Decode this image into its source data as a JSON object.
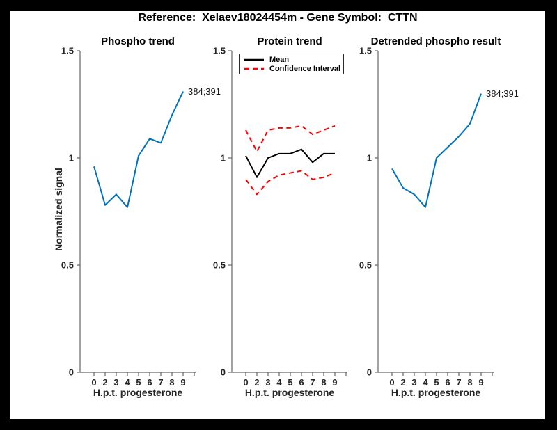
{
  "figure": {
    "title": "Reference:  Xelaev18024454m - Gene Symbol:  CTTN",
    "background": "#000000",
    "canvas": "#ffffff"
  },
  "colors": {
    "blue": "#0072BD",
    "red": "#FF0000",
    "black": "#000000",
    "axis_line": "#666666",
    "tick_text": "#262626"
  },
  "axes_shared": {
    "xlabel": "H.p.t. progesterone",
    "ylabel": "Normalized signal",
    "x_tick_labels": [
      "0",
      "2",
      "3",
      "4",
      "5",
      "6",
      "7",
      "8",
      "9"
    ],
    "y_tick_labels": [
      "0",
      "0.5",
      "1",
      "1.5"
    ],
    "ylim": [
      0,
      1.5
    ],
    "grid": false
  },
  "chart_data": [
    {
      "type": "line",
      "title": "Phospho trend",
      "xlabel": "H.p.t. progesterone",
      "ylabel": "Normalized signal",
      "x": [
        0,
        2,
        3,
        4,
        5,
        6,
        7,
        8,
        9
      ],
      "ylim": [
        0,
        1.5
      ],
      "yticks": [
        0,
        0.5,
        1,
        1.5
      ],
      "series": [
        {
          "name": "phospho site 384;391",
          "color": "#0072BD",
          "style": "solid",
          "values": [
            0.96,
            0.78,
            0.83,
            0.77,
            1.01,
            1.09,
            1.07,
            1.2,
            1.31
          ]
        }
      ],
      "end_label": "384;391"
    },
    {
      "type": "line",
      "title": "Protein trend",
      "xlabel": "H.p.t. progesterone",
      "ylabel": "",
      "x": [
        0,
        2,
        3,
        4,
        5,
        6,
        7,
        8,
        9
      ],
      "ylim": [
        0,
        1.5
      ],
      "yticks": [
        0,
        0.5,
        1,
        1.5
      ],
      "series": [
        {
          "name": "Mean",
          "color": "#000000",
          "style": "solid",
          "values": [
            1.01,
            0.91,
            1.0,
            1.02,
            1.02,
            1.04,
            0.98,
            1.02,
            1.02
          ]
        },
        {
          "name": "Confidence Interval upper",
          "color": "#FF0000",
          "style": "dashed",
          "values": [
            1.13,
            1.03,
            1.13,
            1.14,
            1.14,
            1.15,
            1.11,
            1.13,
            1.15
          ]
        },
        {
          "name": "Confidence Interval lower",
          "color": "#FF0000",
          "style": "dashed",
          "values": [
            0.9,
            0.83,
            0.89,
            0.92,
            0.93,
            0.94,
            0.9,
            0.91,
            0.93
          ]
        }
      ],
      "legend": {
        "position": "northwest",
        "items": [
          {
            "label": "Mean",
            "color": "#000000",
            "style": "solid"
          },
          {
            "label": "Confidence Interval",
            "color": "#FF0000",
            "style": "dashed"
          }
        ]
      }
    },
    {
      "type": "line",
      "title": "Detrended phospho result",
      "xlabel": "H.p.t. progesterone",
      "ylabel": "",
      "x": [
        0,
        2,
        3,
        4,
        5,
        6,
        7,
        8,
        9
      ],
      "ylim": [
        0,
        1.5
      ],
      "yticks": [
        0,
        0.5,
        1,
        1.5
      ],
      "series": [
        {
          "name": "detrended phospho 384;391",
          "color": "#0072BD",
          "style": "solid",
          "values": [
            0.95,
            0.86,
            0.83,
            0.77,
            1.0,
            1.05,
            1.1,
            1.16,
            1.3
          ]
        }
      ],
      "end_label": "384;391"
    }
  ]
}
